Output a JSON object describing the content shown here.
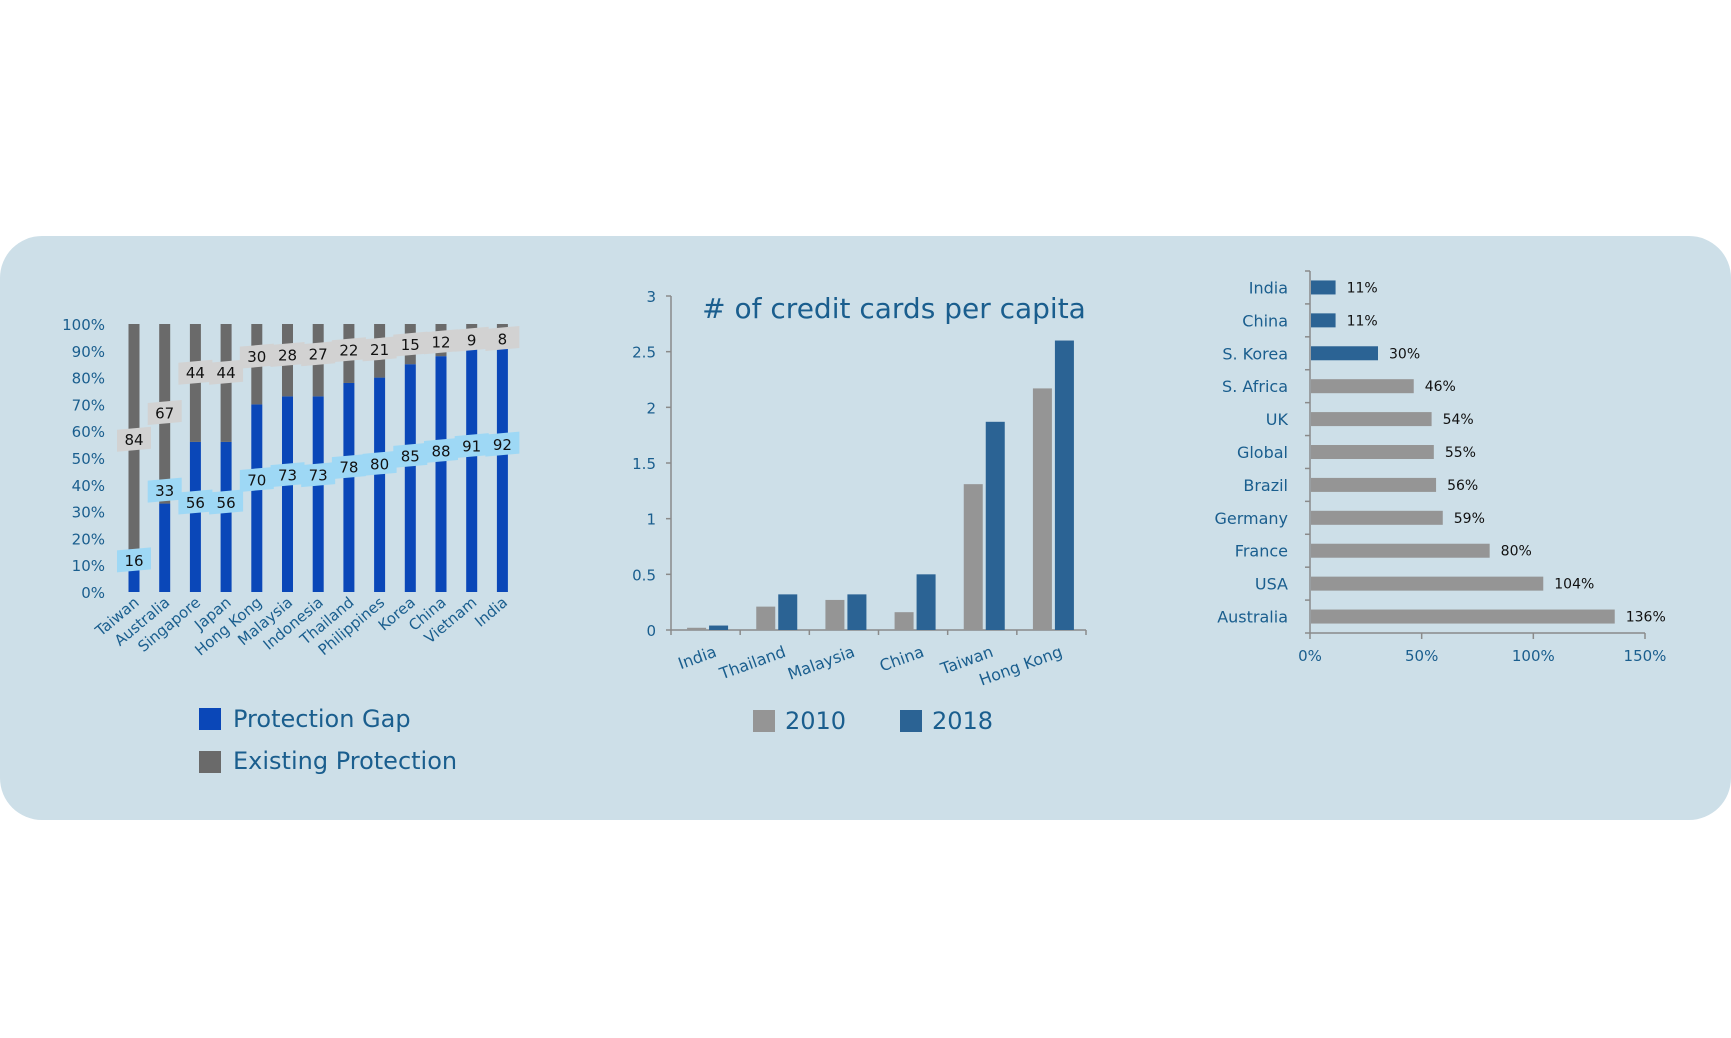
{
  "colors": {
    "panel": "#cddfe8",
    "protection_gap": "#0a47b8",
    "existing_protection": "#6a6a6a",
    "gap_label_bg": "#9ed8f5",
    "existing_label_bg": "#d2d2d2",
    "series_2010": "#959595",
    "series_2018": "#2b6394",
    "highlight_bar": "#2b6394",
    "plain_bar": "#959595",
    "axis_text": "#1a5e8e",
    "title_text": "#1a5e8e"
  },
  "chart_data": [
    {
      "type": "bar",
      "stacked": true,
      "percent": true,
      "categories": [
        "Taiwan",
        "Australia",
        "Singapore",
        "Japan",
        "Hong Kong",
        "Malaysia",
        "Indonesia",
        "Thailand",
        "Philippines",
        "Korea",
        "China",
        "Vietnam",
        "India"
      ],
      "yticks": [
        "0%",
        "10%",
        "20%",
        "30%",
        "40%",
        "50%",
        "60%",
        "70%",
        "80%",
        "90%",
        "100%"
      ],
      "ylim": [
        0,
        100
      ],
      "series": [
        {
          "name": "Protection Gap",
          "values": [
            16,
            33,
            56,
            56,
            70,
            73,
            73,
            78,
            80,
            85,
            88,
            91,
            92
          ]
        },
        {
          "name": "Existing Protection",
          "values": [
            84,
            67,
            44,
            44,
            30,
            28,
            27,
            22,
            21,
            15,
            12,
            9,
            8
          ]
        }
      ],
      "legend_position": "bottom"
    },
    {
      "type": "bar",
      "title": "# of credit cards per capita",
      "categories": [
        "India",
        "Thailand",
        "Malaysia",
        "China",
        "Taiwan",
        "Hong Kong"
      ],
      "yticks": [
        "0",
        "0.5",
        "1",
        "1.5",
        "2",
        "2.5",
        "3"
      ],
      "ylim": [
        0,
        3
      ],
      "series": [
        {
          "name": "2010",
          "values": [
            0.02,
            0.21,
            0.27,
            0.16,
            1.31,
            2.17
          ]
        },
        {
          "name": "2018",
          "values": [
            0.04,
            0.32,
            0.32,
            0.5,
            1.87,
            2.6
          ]
        }
      ],
      "legend_position": "bottom"
    },
    {
      "type": "bar",
      "orientation": "horizontal",
      "categories": [
        "India",
        "China",
        "S. Korea",
        "S. Africa",
        "UK",
        "Global",
        "Brazil",
        "Germany",
        "France",
        "USA",
        "Australia"
      ],
      "values": [
        11,
        11,
        30,
        46,
        54,
        55,
        56,
        59,
        80,
        104,
        136
      ],
      "value_labels": [
        "11%",
        "11%",
        "30%",
        "46%",
        "54%",
        "55%",
        "56%",
        "59%",
        "80%",
        "104%",
        "136%"
      ],
      "highlighted": [
        "India",
        "China",
        "S. Korea"
      ],
      "xticks": [
        "0%",
        "50%",
        "100%",
        "150%"
      ],
      "xlim": [
        0,
        150
      ]
    }
  ]
}
